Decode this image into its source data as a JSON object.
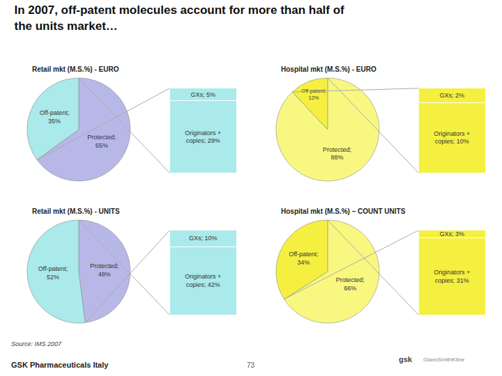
{
  "title": "In 2007, off-patent molecules account for more than half of\nthe units market…",
  "annotations": [
    "Source: IMS 2007",
    "GSK Pharmaceuticals Italy",
    "73",
    "gsk",
    "GlaxoSmithKline"
  ],
  "chart_data": [
    {
      "type": "pie",
      "title": "Retail mkt (M.S.%) - EURO",
      "values": [
        65,
        35
      ],
      "value_labels": [
        "Protected;\n65%",
        "Off-patent;\n35%"
      ],
      "colors": [
        "#b8b8e8",
        "#aaeaea"
      ],
      "data_labels": true,
      "breakdown": {
        "type": "bar",
        "stacked": true,
        "values": [
          5,
          29
        ],
        "value_labels": [
          "GXs; 5%",
          "Originators +\ncopies; 29%"
        ],
        "color": "#aaeaea",
        "ylim": [
          0,
          34
        ],
        "data_labels": true,
        "tick_labels": false
      }
    },
    {
      "type": "pie",
      "title": "Hospital mkt (M.S.%) - EURO",
      "values": [
        88,
        12
      ],
      "value_labels": [
        "Protected;\n88%",
        "Off-patent;\n12%"
      ],
      "colors": [
        "#f8f880",
        "#f5f040"
      ],
      "data_labels": true,
      "breakdown": {
        "type": "bar",
        "stacked": true,
        "values": [
          2,
          10
        ],
        "value_labels": [
          "GXs; 2%",
          "Originators +\ncopies; 10%"
        ],
        "color": "#f5f040",
        "ylim": [
          0,
          12
        ],
        "data_labels": true,
        "tick_labels": false
      }
    },
    {
      "type": "pie",
      "title": "Retail mkt (M.S.%) - UNITS",
      "values": [
        48,
        52
      ],
      "value_labels": [
        "Protected;\n48%",
        "Off-patent;\n52%"
      ],
      "colors": [
        "#b8b8e8",
        "#aaeaea"
      ],
      "data_labels": true,
      "breakdown": {
        "type": "bar",
        "stacked": true,
        "values": [
          10,
          42
        ],
        "value_labels": [
          "GXs; 10%",
          "Originators +\ncopies; 42%"
        ],
        "color": "#aaeaea",
        "ylim": [
          0,
          52
        ],
        "data_labels": true,
        "tick_labels": false
      }
    },
    {
      "type": "pie",
      "title": "Hospital mkt (M.S.%) – COUNT UNITS",
      "values": [
        66,
        34
      ],
      "value_labels": [
        "Protected;\n66%",
        "Off-patent;\n34%"
      ],
      "colors": [
        "#f8f880",
        "#f5f040"
      ],
      "data_labels": true,
      "breakdown": {
        "type": "bar",
        "stacked": true,
        "values": [
          3,
          31
        ],
        "value_labels": [
          "GXs; 3%",
          "Originators +\ncopies; 31%"
        ],
        "color": "#f5f040",
        "ylim": [
          0,
          34
        ],
        "data_labels": true,
        "tick_labels": false
      }
    }
  ]
}
